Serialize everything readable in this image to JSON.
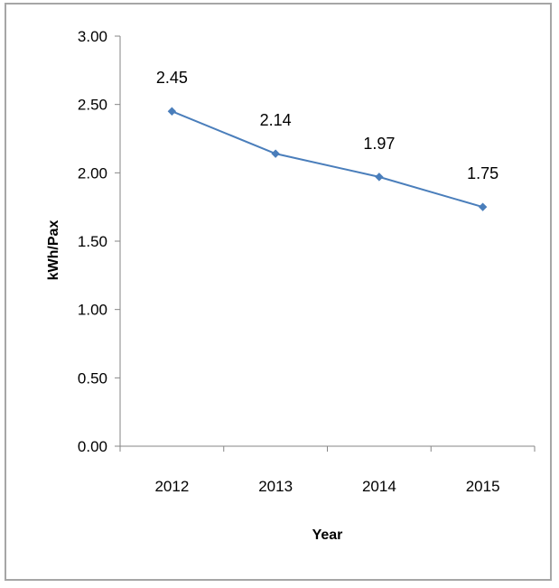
{
  "chart_data": {
    "type": "line",
    "categories": [
      "2012",
      "2013",
      "2014",
      "2015"
    ],
    "series": [
      {
        "values": [
          2.45,
          2.14,
          1.97,
          1.75
        ],
        "data_labels": [
          "2.45",
          "2.14",
          "1.97",
          "1.75"
        ]
      }
    ],
    "xlabel": "Year",
    "ylabel": "kWh/Pax",
    "ylim": [
      0,
      3
    ],
    "yticks": [
      "0.00",
      "0.50",
      "1.00",
      "1.50",
      "2.00",
      "2.50",
      "3.00"
    ],
    "grid": false,
    "line_color": "#4a7ebb"
  }
}
